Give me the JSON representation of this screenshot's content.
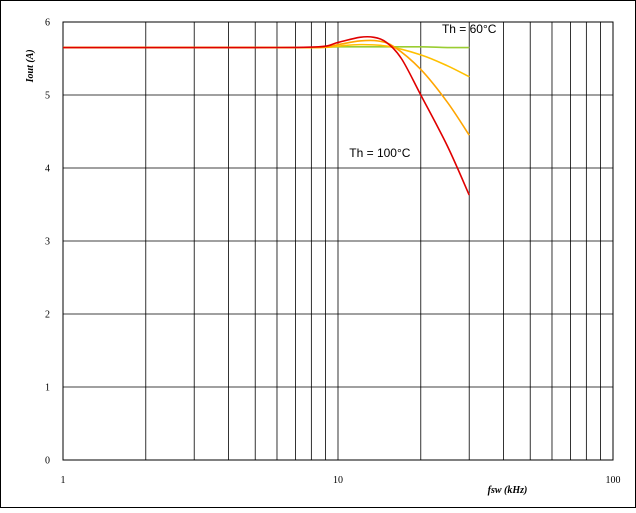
{
  "chart_data": {
    "type": "line",
    "title": "",
    "xlabel": "fsw (kHz)",
    "ylabel": "Iout (A)",
    "xscale": "log",
    "xlim": [
      1,
      100
    ],
    "ylim": [
      0,
      6
    ],
    "grid": true,
    "x_ticks": [
      "1",
      "10",
      "100"
    ],
    "y_ticks": [
      "0",
      "1",
      "2",
      "3",
      "4",
      "5",
      "6"
    ],
    "annotations": [
      {
        "text": "Th = 60°C",
        "x": 30,
        "y": 5.85
      },
      {
        "text": "Th = 100°C",
        "x": 14.2,
        "y": 4.15
      }
    ],
    "series": [
      {
        "color": "#9ACD32",
        "x": [
          1,
          5,
          8,
          10,
          12,
          15,
          20,
          25,
          30
        ],
        "y": [
          5.65,
          5.65,
          5.65,
          5.66,
          5.66,
          5.66,
          5.66,
          5.65,
          5.65
        ]
      },
      {
        "color": "#FFC000",
        "x": [
          1,
          5,
          8.5,
          10,
          12,
          15,
          20,
          25,
          30
        ],
        "y": [
          5.65,
          5.65,
          5.65,
          5.67,
          5.69,
          5.67,
          5.55,
          5.4,
          5.25
        ]
      },
      {
        "color": "#FFA500",
        "x": [
          1,
          5,
          8.5,
          10,
          12,
          14,
          16,
          20,
          25,
          30
        ],
        "y": [
          5.65,
          5.65,
          5.65,
          5.69,
          5.74,
          5.74,
          5.66,
          5.35,
          4.9,
          4.45
        ]
      },
      {
        "color": "#E00000",
        "x": [
          1,
          5,
          8.5,
          10,
          12,
          13.5,
          15,
          17,
          20,
          25,
          30
        ],
        "y": [
          5.65,
          5.65,
          5.66,
          5.72,
          5.79,
          5.79,
          5.72,
          5.5,
          5.0,
          4.3,
          3.63
        ]
      }
    ]
  }
}
